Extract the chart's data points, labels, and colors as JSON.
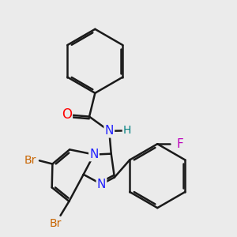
{
  "bg_color": "#ebebeb",
  "bond_color": "#1a1a1a",
  "bond_width": 1.8,
  "dbo": 0.055,
  "atom_colors": {
    "N": "#2020ff",
    "O": "#ff0000",
    "Br": "#c86400",
    "F": "#bb00bb",
    "H": "#008080",
    "C": "#1a1a1a"
  },
  "font_size": 11
}
